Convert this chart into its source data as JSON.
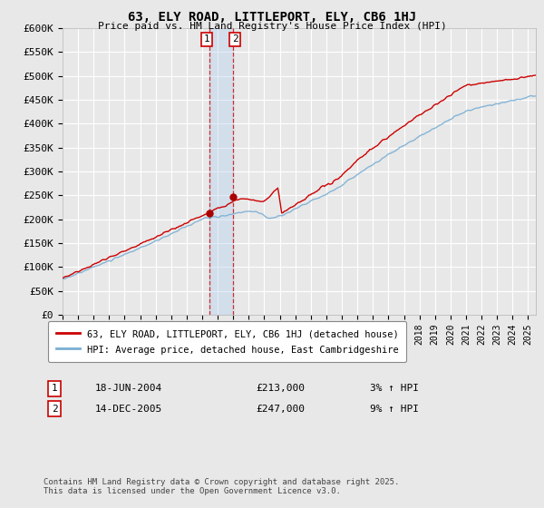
{
  "title": "63, ELY ROAD, LITTLEPORT, ELY, CB6 1HJ",
  "subtitle": "Price paid vs. HM Land Registry's House Price Index (HPI)",
  "ylabel_ticks": [
    "£0",
    "£50K",
    "£100K",
    "£150K",
    "£200K",
    "£250K",
    "£300K",
    "£350K",
    "£400K",
    "£450K",
    "£500K",
    "£550K",
    "£600K"
  ],
  "ytick_values": [
    0,
    50000,
    100000,
    150000,
    200000,
    250000,
    300000,
    350000,
    400000,
    450000,
    500000,
    550000,
    600000
  ],
  "red_line_color": "#cc0000",
  "blue_line_color": "#7aafd4",
  "marker_color": "#aa0000",
  "vline_color": "#cc0000",
  "span_color": "#aaccee",
  "background_color": "#e8e8e8",
  "plot_bg_color": "#e8e8e8",
  "grid_color": "#ffffff",
  "legend1": "63, ELY ROAD, LITTLEPORT, ELY, CB6 1HJ (detached house)",
  "legend2": "HPI: Average price, detached house, East Cambridgeshire",
  "footnote": "Contains HM Land Registry data © Crown copyright and database right 2025.\nThis data is licensed under the Open Government Licence v3.0.",
  "transaction1_date": "18-JUN-2004",
  "transaction1_price": 213000,
  "transaction1_hpi": "3% ↑ HPI",
  "transaction2_date": "14-DEC-2005",
  "transaction2_price": 247000,
  "transaction2_hpi": "9% ↑ HPI",
  "transaction1_x": 2004.46,
  "transaction2_x": 2005.96,
  "xmin": 1995,
  "xmax": 2025.5,
  "ymin": 0,
  "ymax": 600000
}
